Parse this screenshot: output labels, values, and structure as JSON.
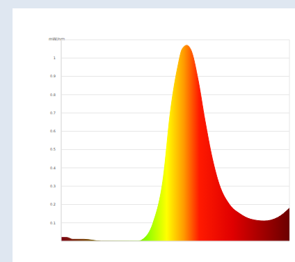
{
  "chart_data": {
    "type": "area",
    "y_label": "mW/nm",
    "x": [
      380,
      390,
      400,
      420,
      450,
      480,
      500,
      515,
      523,
      541,
      559,
      571,
      584,
      592,
      600,
      608,
      620,
      632,
      645,
      657,
      675,
      693,
      712,
      736,
      760,
      780
    ],
    "values": [
      0.02,
      0.02,
      0.01,
      0.01,
      0.0,
      0.0,
      0.0,
      0.0,
      0.01,
      0.1,
      0.35,
      0.7,
      0.95,
      1.05,
      1.07,
      1.04,
      0.88,
      0.66,
      0.45,
      0.31,
      0.2,
      0.15,
      0.12,
      0.11,
      0.13,
      0.18
    ],
    "xlim": [
      380,
      780
    ],
    "xticks": [
      380,
      430,
      480,
      530,
      580,
      630,
      680,
      730,
      780
    ],
    "ylim": [
      0,
      1.1
    ],
    "yticks": [
      0.1,
      0.2,
      0.3,
      0.4,
      0.5,
      0.6,
      0.7,
      0.8,
      0.9,
      1.0
    ],
    "grid": true,
    "tick_labels": "y"
  }
}
